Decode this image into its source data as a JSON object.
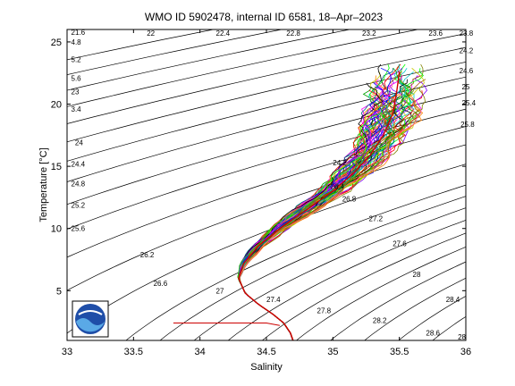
{
  "chart_data": {
    "type": "line",
    "title": "WMO ID 5902478, internal ID 6581, 18–Apr–2023",
    "xlabel": "Salinity",
    "ylabel": "Temperature [°C]",
    "xlim": [
      33,
      36
    ],
    "ylim": [
      1,
      26
    ],
    "x_ticks": [
      {
        "value": 33,
        "label": "33"
      },
      {
        "value": 33.5,
        "label": "33.5"
      },
      {
        "value": 34,
        "label": "34"
      },
      {
        "value": 34.5,
        "label": "34.5"
      },
      {
        "value": 35,
        "label": "35"
      },
      {
        "value": 35.5,
        "label": "35.5"
      },
      {
        "value": 36,
        "label": "36"
      }
    ],
    "y_ticks": [
      {
        "value": 5,
        "label": "5"
      },
      {
        "value": 10,
        "label": "10"
      },
      {
        "value": 15,
        "label": "15"
      },
      {
        "value": 20,
        "label": "20"
      },
      {
        "value": 25,
        "label": "25"
      }
    ],
    "grid": false,
    "logo": "noaa-logo",
    "density_contours": {
      "levels": [
        21.6,
        22,
        22.4,
        22.8,
        23.2,
        23.6,
        24,
        24.4,
        24.8,
        25.2,
        25.6,
        26,
        26.4,
        26.8,
        27,
        27.2,
        27.4,
        27.6,
        27.8,
        28,
        28.2,
        28.4,
        28.6,
        28.8
      ],
      "labels": [
        {
          "text": "21.6",
          "s": 33.03,
          "t": 25.8
        },
        {
          "text": "22",
          "s": 33.6,
          "t": 25.7
        },
        {
          "text": "22.4",
          "s": 34.12,
          "t": 25.7
        },
        {
          "text": "22.8",
          "s": 34.65,
          "t": 25.7
        },
        {
          "text": "23.2",
          "s": 35.22,
          "t": 25.7
        },
        {
          "text": "23.6",
          "s": 35.72,
          "t": 25.7
        },
        {
          "text": "23.8",
          "s": 35.95,
          "t": 25.7
        },
        {
          "text": "24.2",
          "s": 35.95,
          "t": 24.3
        },
        {
          "text": "24.6",
          "s": 35.95,
          "t": 22.7
        },
        {
          "text": "25",
          "s": 35.97,
          "t": 21.4
        },
        {
          "text": "25.4",
          "s": 35.97,
          "t": 20.1
        },
        {
          "text": "25.8",
          "s": 35.96,
          "t": 18.4
        },
        {
          "text": "4.8",
          "s": 33.03,
          "t": 25.0
        },
        {
          "text": "5.2",
          "s": 33.03,
          "t": 23.6
        },
        {
          "text": "5.6",
          "s": 33.03,
          "t": 22.1
        },
        {
          "text": "23",
          "s": 33.03,
          "t": 21.0
        },
        {
          "text": "3.4",
          "s": 33.03,
          "t": 19.6
        },
        {
          "text": "24",
          "s": 33.06,
          "t": 16.9
        },
        {
          "text": "24.4",
          "s": 33.03,
          "t": 15.2
        },
        {
          "text": "24.8",
          "s": 33.03,
          "t": 13.6
        },
        {
          "text": "25.2",
          "s": 33.03,
          "t": 11.9
        },
        {
          "text": "25.6",
          "s": 33.03,
          "t": 10.0
        },
        {
          "text": "26.2",
          "s": 33.55,
          "t": 7.9
        },
        {
          "text": "26.6",
          "s": 33.65,
          "t": 5.6
        },
        {
          "text": "27",
          "s": 34.12,
          "t": 5.0
        },
        {
          "text": "27.4",
          "s": 34.5,
          "t": 4.3
        },
        {
          "text": "27.8",
          "s": 34.88,
          "t": 3.4
        },
        {
          "text": "28.2",
          "s": 35.3,
          "t": 2.6
        },
        {
          "text": "28.6",
          "s": 35.7,
          "t": 1.6
        },
        {
          "text": "28",
          "s": 35.6,
          "t": 6.3
        },
        {
          "text": "28.4",
          "s": 35.85,
          "t": 4.3
        },
        {
          "text": "28",
          "s": 35.94,
          "t": 1.3
        },
        {
          "text": "26.8",
          "s": 35.07,
          "t": 12.4
        },
        {
          "text": "27.2",
          "s": 35.27,
          "t": 10.8
        },
        {
          "text": "27.6",
          "s": 35.45,
          "t": 8.8
        },
        {
          "text": "24.2",
          "s": 35.0,
          "t": 15.3
        },
        {
          "text": "26.4",
          "s": 34.98,
          "t": 13.4
        }
      ]
    },
    "series": [
      {
        "values": [
          {
            "s": 34.7,
            "t": 1.0
          },
          {
            "s": 34.68,
            "t": 1.6
          },
          {
            "s": 34.63,
            "t": 2.4
          },
          {
            "s": 34.55,
            "t": 3.1
          },
          {
            "s": 34.44,
            "t": 3.9
          },
          {
            "s": 34.34,
            "t": 4.8
          },
          {
            "s": 34.29,
            "t": 6.0
          },
          {
            "s": 34.33,
            "t": 7.2
          },
          {
            "s": 34.44,
            "t": 8.6
          },
          {
            "s": 34.6,
            "t": 10.0
          },
          {
            "s": 34.8,
            "t": 11.5
          },
          {
            "s": 35.0,
            "t": 13.0
          },
          {
            "s": 35.15,
            "t": 14.4
          },
          {
            "s": 35.28,
            "t": 15.9
          },
          {
            "s": 35.38,
            "t": 17.5
          },
          {
            "s": 35.45,
            "t": 19.2
          },
          {
            "s": 35.48,
            "t": 21.0
          },
          {
            "s": 35.5,
            "t": 22.6
          }
        ]
      },
      {
        "values": [
          {
            "s": 33.8,
            "t": 2.4
          },
          {
            "s": 34.5,
            "t": 2.4
          },
          {
            "s": 34.6,
            "t": 2.2
          }
        ]
      }
    ]
  }
}
